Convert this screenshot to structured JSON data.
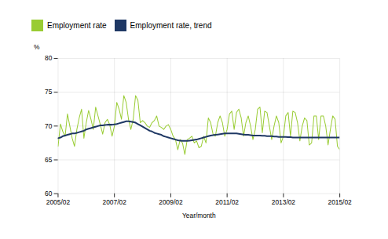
{
  "chart_data": {
    "type": "line",
    "xlabel": "Year/month",
    "ylabel": "%",
    "categories": [
      "2005/02",
      null,
      null,
      null,
      null,
      null,
      null,
      null,
      null,
      null,
      null,
      null,
      null,
      null,
      null,
      null,
      null,
      null,
      null,
      null,
      null,
      null,
      null,
      null,
      "2007/02",
      null,
      null,
      null,
      null,
      null,
      null,
      null,
      null,
      null,
      null,
      null,
      null,
      null,
      null,
      null,
      null,
      null,
      null,
      null,
      null,
      null,
      null,
      null,
      "2009/02",
      null,
      null,
      null,
      null,
      null,
      null,
      null,
      null,
      null,
      null,
      null,
      null,
      null,
      null,
      null,
      null,
      null,
      null,
      null,
      null,
      null,
      null,
      null,
      "2011/02",
      null,
      null,
      null,
      null,
      null,
      null,
      null,
      null,
      null,
      null,
      null,
      null,
      null,
      null,
      null,
      null,
      null,
      null,
      null,
      null,
      null,
      null,
      null,
      "2013/02",
      null,
      null,
      null,
      null,
      null,
      null,
      null,
      null,
      null,
      null,
      null,
      null,
      null,
      null,
      null,
      null,
      null,
      null,
      null,
      null,
      null,
      null,
      null,
      "2015/02"
    ],
    "series": [
      {
        "name": "Employment rate",
        "color": "#99cc33",
        "values": [
          67.0,
          70.3,
          69.2,
          68.5,
          71.8,
          70.0,
          68.2,
          67.0,
          69.5,
          71.2,
          72.5,
          68.2,
          70.5,
          72.3,
          71.0,
          69.5,
          72.8,
          71.5,
          70.2,
          68.8,
          70.5,
          71.0,
          70.2,
          68.5,
          70.0,
          73.5,
          72.5,
          71.0,
          74.5,
          73.5,
          71.0,
          69.5,
          71.0,
          74.5,
          73.8,
          70.5,
          70.8,
          70.5,
          70.0,
          69.8,
          70.5,
          70.8,
          71.5,
          70.0,
          69.8,
          69.5,
          70.0,
          70.2,
          69.5,
          68.5,
          68.0,
          66.5,
          68.0,
          67.5,
          65.8,
          68.0,
          68.2,
          68.5,
          67.5,
          67.8,
          66.8,
          67.0,
          68.5,
          67.5,
          71.2,
          70.5,
          68.8,
          68.5,
          70.5,
          71.5,
          70.5,
          68.5,
          69.5,
          71.8,
          72.2,
          69.5,
          72.0,
          72.5,
          71.2,
          68.5,
          70.5,
          71.5,
          70.0,
          68.0,
          69.5,
          72.5,
          72.8,
          69.0,
          72.2,
          72.0,
          70.0,
          68.0,
          70.0,
          71.5,
          70.5,
          67.5,
          68.5,
          71.5,
          72.0,
          68.5,
          72.2,
          72.0,
          70.5,
          67.8,
          70.0,
          71.2,
          70.8,
          67.2,
          67.5,
          71.5,
          71.5,
          68.0,
          71.5,
          71.5,
          70.0,
          67.2,
          69.5,
          71.5,
          71.0,
          67.0,
          66.5
        ]
      },
      {
        "name": "Employment rate, trend",
        "color": "#1f3864",
        "values": [
          68.2,
          68.3,
          68.5,
          68.6,
          68.7,
          68.8,
          68.9,
          68.9,
          69.0,
          69.1,
          69.2,
          69.3,
          69.5,
          69.6,
          69.7,
          69.8,
          69.9,
          70.0,
          70.1,
          70.1,
          70.15,
          70.2,
          70.2,
          70.2,
          70.25,
          70.3,
          70.4,
          70.5,
          70.6,
          70.7,
          70.7,
          70.65,
          70.6,
          70.5,
          70.3,
          70.1,
          69.9,
          69.7,
          69.5,
          69.3,
          69.2,
          69.0,
          68.9,
          68.8,
          68.7,
          68.5,
          68.4,
          68.3,
          68.2,
          68.1,
          68.0,
          67.9,
          67.85,
          67.8,
          67.8,
          67.8,
          67.85,
          67.9,
          67.95,
          68.0,
          68.1,
          68.2,
          68.3,
          68.4,
          68.5,
          68.6,
          68.65,
          68.7,
          68.75,
          68.8,
          68.85,
          68.9,
          68.9,
          68.9,
          68.9,
          68.9,
          68.9,
          68.85,
          68.8,
          68.75,
          68.7,
          68.7,
          68.65,
          68.6,
          68.6,
          68.6,
          68.6,
          68.55,
          68.55,
          68.5,
          68.5,
          68.5,
          68.45,
          68.45,
          68.4,
          68.4,
          68.4,
          68.4,
          68.35,
          68.35,
          68.3,
          68.3,
          68.3,
          68.3,
          68.3,
          68.3,
          68.3,
          68.3,
          68.3,
          68.3,
          68.3,
          68.3,
          68.3,
          68.3,
          68.3,
          68.3,
          68.3,
          68.3,
          68.3,
          68.3,
          68.3
        ]
      }
    ],
    "ylim": [
      60,
      80
    ],
    "yticks": [
      60,
      65,
      70,
      75,
      80
    ],
    "grid": true,
    "legend": "top"
  }
}
